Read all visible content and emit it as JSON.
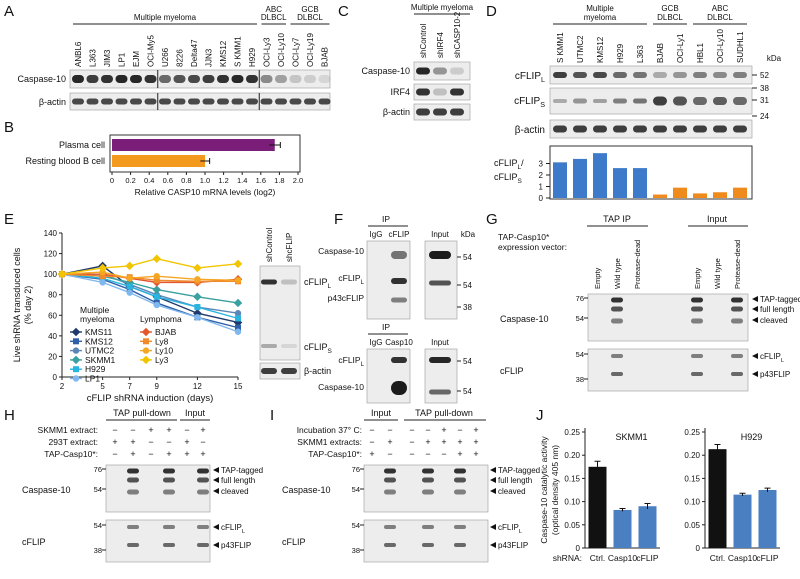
{
  "panel_letters": [
    "A",
    "B",
    "C",
    "D",
    "E",
    "F",
    "G",
    "H",
    "I",
    "J"
  ],
  "A": {
    "groups": [
      [
        "Multiple myeloma"
      ],
      [
        "ABC",
        "DLBCL"
      ],
      [
        "GCB",
        "DLBCL"
      ]
    ],
    "lanes": [
      "ANBL6",
      "L363",
      "JIM3",
      "LP1",
      "EJM",
      "OCI-My5",
      "U266",
      "8226",
      "Delta47",
      "JJN3",
      "KMS12",
      "S KMM1",
      "H929",
      "OCI-Ly3",
      "OCI-Ly10",
      "OCI-Ly7",
      "OCI-Ly19",
      "BJAB"
    ],
    "rows": [
      "Caspase-10",
      "β-actin"
    ]
  },
  "C": {
    "group": "Multiple myeloma",
    "lanes": [
      "shControl",
      "shIRF4",
      "shCASP10-2"
    ],
    "rows": [
      "Caspase-10",
      "IRF4",
      "β-actin"
    ]
  },
  "D": {
    "groups": [
      [
        "Multiple",
        "myeloma"
      ],
      [
        "GCB",
        "DLBCL"
      ],
      [
        "ABC",
        "DLBCL"
      ]
    ],
    "rows": [
      {
        "text": "cFLIP",
        "sub": "L"
      },
      {
        "text": "cFLIP",
        "sub": "S"
      },
      "β-actin"
    ],
    "kda_title": "kDa",
    "kda": [
      52,
      38,
      31,
      24
    ]
  },
  "E_blot": {
    "lanes": [
      "shControl",
      "shcFLIP"
    ],
    "rows": [
      {
        "text": "cFLIP",
        "sub": "L"
      },
      {
        "text": "cFLIP",
        "sub": "S"
      },
      "β-actin"
    ]
  },
  "F": {
    "top": {
      "ip": "IP",
      "lanes": [
        "IgG",
        "cFLIP"
      ],
      "input": "Input",
      "kda_title": "kDa",
      "rows": [
        "Caspase-10",
        {
          "text": "cFLIP",
          "sub": "L"
        },
        "p43cFLIP"
      ],
      "kda": [
        54,
        54,
        38
      ]
    },
    "bottom": {
      "ip": "IP",
      "lanes": [
        "IgG",
        "Casp10"
      ],
      "input": "Input",
      "rows": [
        {
          "text": "cFLIP",
          "sub": "L"
        },
        "Caspase-10"
      ],
      "kda": [
        54,
        54
      ]
    }
  },
  "G": {
    "headers": [
      "TAP IP",
      "Input"
    ],
    "vector_label": [
      "TAP-Casp10*",
      "expression vector:"
    ],
    "lanes": [
      "Empty",
      "Wild type",
      "Protease-dead",
      "Empty",
      "Wild type",
      "Protease-dead"
    ],
    "rows": [
      "Caspase-10",
      "cFLIP"
    ],
    "kda": [
      [
        76,
        54
      ],
      [
        54,
        38
      ]
    ],
    "arrows": [
      "TAP-tagged",
      "full length",
      "cleaved",
      {
        "text": "cFLIP",
        "sub": "L"
      },
      "p43FLIP"
    ]
  },
  "H": {
    "headers": [
      "TAP pull-down",
      "Input"
    ],
    "conditions": [
      {
        "label": "SKMM1 extract:",
        "signs": [
          "−",
          "−",
          "+",
          "+",
          "−",
          "+"
        ]
      },
      {
        "label": "293T extract:",
        "signs": [
          "+",
          "+",
          "−",
          "−",
          "+",
          "−"
        ]
      },
      {
        "label": "TAP-Casp10*:",
        "signs": [
          "−",
          "+",
          "−",
          "+",
          "+",
          "+"
        ]
      }
    ],
    "rows": [
      "Caspase-10",
      "cFLIP"
    ],
    "kda": [
      [
        76,
        54
      ],
      [
        54,
        38
      ]
    ],
    "arrows": [
      "TAP-tagged",
      "full length",
      "cleaved",
      {
        "text": "cFLIP",
        "sub": "L"
      },
      "p43FLIP"
    ]
  },
  "I": {
    "headers": [
      "Input",
      "TAP pull-down"
    ],
    "conditions": [
      {
        "label": "Incubation 37° C:",
        "signs": [
          "−",
          "−",
          "−",
          "−",
          "+",
          "−",
          "+"
        ]
      },
      {
        "label": "SKMM1 extracts:",
        "signs": [
          "−",
          "+",
          "−",
          "+",
          "+",
          "+",
          "+"
        ]
      },
      {
        "label": "TAP-Casp10*:",
        "signs": [
          "+",
          "−",
          "−",
          "−",
          "−",
          "+",
          "+"
        ]
      }
    ],
    "rows": [
      "Caspase-10",
      "cFLIP"
    ],
    "kda": [
      [
        76,
        54
      ],
      [
        54,
        38
      ]
    ],
    "arrows": [
      "TAP-tagged",
      "full length",
      "cleaved",
      {
        "text": "cFLIP",
        "sub": "L"
      },
      "p43FLIP"
    ]
  },
  "chart_data": [
    {
      "type": "bar",
      "orientation": "horizontal",
      "categories": [
        "Plasma cell",
        "Resting blood B cell"
      ],
      "values": [
        1.75,
        1.0
      ],
      "errors": [
        0.06,
        0.05
      ],
      "colors": [
        "#7b1e7a",
        "#f39a1e"
      ],
      "xlabel": "Relative CASP10 mRNA levels (log2)",
      "xlim": [
        0,
        2
      ],
      "xticks": [
        0,
        0.2,
        0.4,
        0.6,
        0.8,
        {
          "value": 1,
          "label": "1.0"
        },
        1.2,
        1.4,
        1.6,
        1.8,
        {
          "value": 2,
          "label": "2.0"
        }
      ]
    },
    {
      "type": "bar",
      "categories": [
        "S KMM1",
        "UTMC2",
        "KMS12",
        "H929",
        "L363",
        "BJAB",
        "OCI-Ly1",
        "HBL1",
        "OCI-Ly10",
        "SUDHL1"
      ],
      "values": [
        3.1,
        3.4,
        3.9,
        2.6,
        2.6,
        0.3,
        0.9,
        0.4,
        0.5,
        0.9
      ],
      "colors": [
        "#3d7ac9",
        "#3d7ac9",
        "#3d7ac9",
        "#3d7ac9",
        "#3d7ac9",
        "#ef8a1d",
        "#ef8a1d",
        "#ef8a1d",
        "#ef8a1d",
        "#ef8a1d"
      ],
      "ylabel": [
        {
          "text": "cFLIP",
          "sub": "L",
          "after": "/"
        },
        {
          "text": "cFLIP",
          "sub": "S"
        }
      ],
      "ylim": [
        0,
        4
      ],
      "yticks": [
        0,
        1,
        2,
        3
      ]
    },
    {
      "type": "line",
      "ylabel": [
        "Live shRNA transduced cells",
        "(% day 2)"
      ],
      "xlabel": "cFLIP shRNA induction (days)",
      "x": [
        2,
        5,
        7,
        9,
        12,
        15
      ],
      "xlim": [
        2,
        15
      ],
      "xticks": [
        2,
        5,
        7,
        9,
        12,
        15
      ],
      "ylim": [
        0,
        140
      ],
      "yticks": [
        0,
        20,
        40,
        60,
        80,
        100,
        120,
        140
      ],
      "legend_groups": [
        [
          "Multiple",
          "myeloma"
        ],
        [
          "Lymphoma"
        ]
      ],
      "series": [
        {
          "name": "KMS11",
          "color": "#1f3a6b",
          "values": [
            100,
            108,
            88,
            78,
            62,
            53
          ]
        },
        {
          "name": "KMS12",
          "color": "#2f5fa8",
          "values": [
            100,
            95,
            85,
            72,
            58,
            48
          ]
        },
        {
          "name": "UTMC2",
          "color": "#5b87b8",
          "values": [
            100,
            100,
            90,
            80,
            68,
            62
          ]
        },
        {
          "name": "SKMM1",
          "color": "#3aa0a0",
          "values": [
            100,
            98,
            92,
            85,
            78,
            72
          ]
        },
        {
          "name": "H929",
          "color": "#29b5e0",
          "values": [
            100,
            96,
            88,
            78,
            68,
            57
          ]
        },
        {
          "name": "LP1",
          "color": "#7fb8ee",
          "values": [
            100,
            92,
            82,
            70,
            58,
            44
          ]
        },
        {
          "name": "BJAB",
          "color": "#e2572b",
          "values": [
            100,
            100,
            96,
            92,
            92,
            95
          ]
        },
        {
          "name": "Ly8",
          "color": "#f08a2c",
          "values": [
            100,
            98,
            97,
            94,
            93,
            93
          ]
        },
        {
          "name": "Ly10",
          "color": "#f5a623",
          "values": [
            100,
            102,
            96,
            98,
            95,
            94
          ]
        },
        {
          "name": "Ly3",
          "color": "#f2c500",
          "values": [
            100,
            106,
            108,
            115,
            106,
            110
          ]
        }
      ]
    },
    {
      "type": "bar",
      "title": "SKMM1",
      "category_label": "shRNA:",
      "ylabel": [
        "Caspase-10 catalytic activity",
        "(optical density 405 nm)"
      ],
      "categories": [
        "Ctrl.",
        "Casp10",
        "cFLIP"
      ],
      "values": [
        0.175,
        0.082,
        0.09
      ],
      "errors": [
        0.012,
        0.003,
        0.006
      ],
      "colors": [
        "#111111",
        "#4a7fc1",
        "#4a7fc1"
      ],
      "ylim": [
        0,
        0.25
      ],
      "yticks": [
        0,
        0.05,
        {
          "value": 0.1,
          "label": "0.10"
        },
        0.15,
        {
          "value": 0.2,
          "label": "0.20"
        },
        0.25
      ]
    },
    {
      "type": "bar",
      "title": "H929",
      "categories": [
        "Ctrl.",
        "Casp10",
        "cFLIP"
      ],
      "values": [
        0.213,
        0.115,
        0.125
      ],
      "errors": [
        0.01,
        0.003,
        0.004
      ],
      "colors": [
        "#111111",
        "#4a7fc1",
        "#4a7fc1"
      ],
      "ylim": [
        0,
        0.25
      ],
      "yticks": [
        0,
        0.05,
        {
          "value": 0.1,
          "label": "0.10"
        },
        0.15,
        {
          "value": 0.2,
          "label": "0.20"
        },
        0.25
      ]
    }
  ]
}
